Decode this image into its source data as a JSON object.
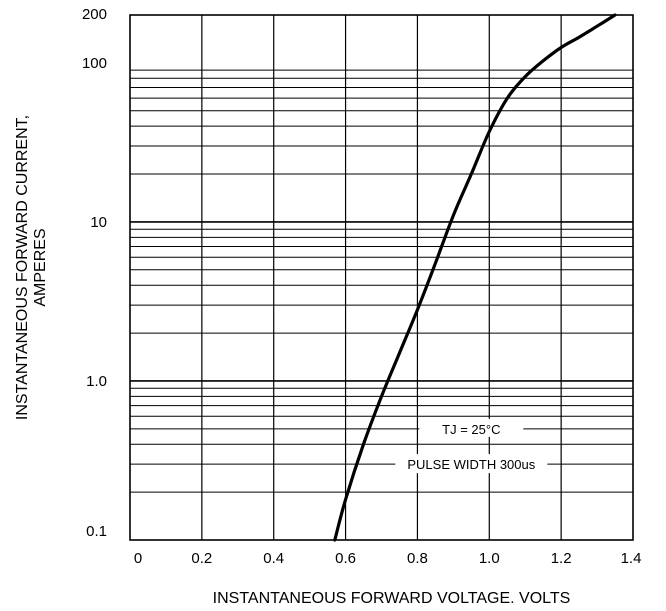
{
  "chart_data": {
    "type": "line",
    "title": "",
    "xlabel": "INSTANTANEOUS FORWARD VOLTAGE. VOLTS",
    "ylabel_lines": [
      "INSTANTANEOUS FORWARD CURRENT,",
      "AMPERES"
    ],
    "xlim": [
      0,
      1.4
    ],
    "ylim": [
      0.1,
      200
    ],
    "y_scale": "log",
    "grid": true,
    "x_tick_labels": [
      "0",
      "0.2",
      "0.4",
      "0.6",
      "0.8",
      "1.0",
      "1.2",
      "1.4"
    ],
    "y_tick_values": [
      0.1,
      1,
      10,
      100,
      200
    ],
    "y_tick_labels": [
      "0.1",
      "1.0",
      "10",
      "100",
      "200"
    ],
    "annotations": [
      "TJ = 25°C",
      "PULSE WIDTH 300us"
    ],
    "series": [
      {
        "x": [
          0.57,
          0.6,
          0.65,
          0.7,
          0.75,
          0.8,
          0.85,
          0.9,
          0.95,
          1.0,
          1.05,
          1.1,
          1.15,
          1.2,
          1.25,
          1.3,
          1.35
        ],
        "y": [
          0.1,
          0.18,
          0.4,
          0.8,
          1.5,
          2.8,
          5.5,
          11,
          20,
          37,
          60,
          82,
          103,
          125,
          145,
          170,
          200
        ]
      }
    ]
  }
}
